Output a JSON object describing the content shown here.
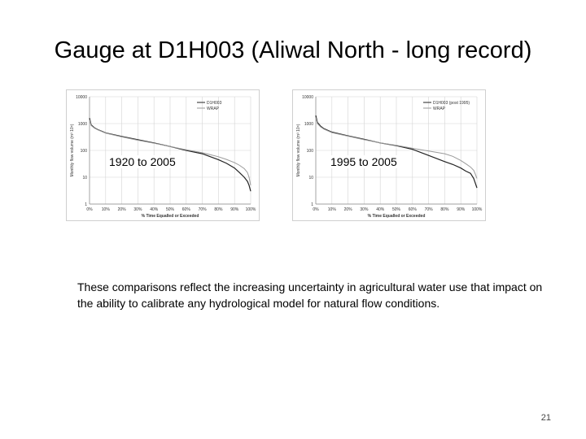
{
  "slide": {
    "title": "Gauge at D1H003 (Aliwal North - long record)",
    "body": "These comparisons reflect the increasing uncertainty in agricultural water use that impact on the ability to calibrate any hydrological model for natural flow conditions.",
    "page_number": "21"
  },
  "chart_data": [
    {
      "type": "line",
      "caption": "1920 to 2005",
      "ylabel": "Monthly flow volume (m³ 10⁶)",
      "xlabel": "% Time Equalled or Exceeded",
      "x_ticks": [
        "0%",
        "10%",
        "20%",
        "30%",
        "40%",
        "50%",
        "60%",
        "70%",
        "80%",
        "90%",
        "100%"
      ],
      "y_ticks": [
        "10000",
        "1000",
        "100",
        "10",
        "1"
      ],
      "y_scale": "log",
      "ylim": [
        1,
        10000
      ],
      "xlim": [
        0,
        100
      ],
      "grid": true,
      "legend_position": "top-right",
      "series": [
        {
          "name": "D1H003",
          "color": "#222222",
          "x": [
            0,
            1,
            3,
            5,
            10,
            20,
            30,
            40,
            50,
            60,
            70,
            80,
            85,
            90,
            93,
            96,
            98,
            99,
            100
          ],
          "y": [
            1600,
            900,
            700,
            600,
            450,
            330,
            250,
            190,
            140,
            100,
            75,
            45,
            33,
            22,
            15,
            10,
            7,
            5,
            3
          ]
        },
        {
          "name": "WRAP",
          "color": "#9a9a9a",
          "x": [
            0,
            1,
            3,
            5,
            10,
            20,
            30,
            40,
            50,
            60,
            70,
            80,
            85,
            90,
            93,
            96,
            98,
            99,
            100
          ],
          "y": [
            1400,
            850,
            680,
            590,
            440,
            320,
            240,
            185,
            140,
            105,
            82,
            58,
            46,
            35,
            28,
            21,
            15,
            10,
            5
          ]
        }
      ]
    },
    {
      "type": "line",
      "caption": "1995 to 2005",
      "ylabel": "Monthly flow volume (m³ 10⁶)",
      "xlabel": "% Time Equalled or Exceeded",
      "x_ticks": [
        "0%",
        "10%",
        "20%",
        "30%",
        "40%",
        "50%",
        "60%",
        "70%",
        "80%",
        "90%",
        "100%"
      ],
      "y_ticks": [
        "10000",
        "1000",
        "100",
        "10",
        "1"
      ],
      "y_scale": "log",
      "ylim": [
        1,
        10000
      ],
      "xlim": [
        0,
        100
      ],
      "grid": true,
      "legend_position": "top-right",
      "series": [
        {
          "name": "D1H003 (post 1995)",
          "color": "#222222",
          "x": [
            0,
            1,
            3,
            5,
            10,
            20,
            30,
            40,
            50,
            60,
            70,
            80,
            85,
            90,
            93,
            96,
            98,
            99,
            100
          ],
          "y": [
            2000,
            1100,
            800,
            650,
            480,
            350,
            260,
            190,
            150,
            110,
            65,
            38,
            30,
            22,
            17,
            14,
            9,
            6,
            4
          ]
        },
        {
          "name": "WRAP",
          "color": "#9a9a9a",
          "x": [
            0,
            1,
            3,
            5,
            10,
            20,
            30,
            40,
            50,
            60,
            70,
            80,
            85,
            90,
            93,
            96,
            98,
            99,
            100
          ],
          "y": [
            1700,
            1000,
            750,
            620,
            460,
            340,
            250,
            190,
            155,
            120,
            95,
            75,
            60,
            42,
            32,
            24,
            18,
            13,
            9
          ]
        }
      ]
    }
  ]
}
